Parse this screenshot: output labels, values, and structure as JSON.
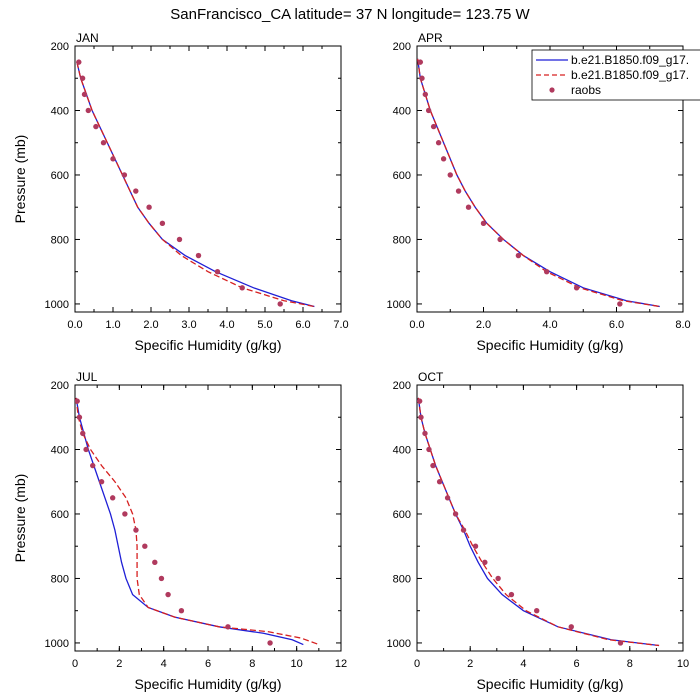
{
  "title": "SanFrancisco_CA  latitude= 37 N longitude= 123.75 W",
  "legend": {
    "placement": "top-right",
    "entries": [
      {
        "label": "b.e21.B1850.f09_g17.",
        "style": "solid",
        "color": "#1f1fd6"
      },
      {
        "label": "b.e21.B1850.f09_g17.",
        "style": "dashed",
        "color": "#d62020"
      },
      {
        "label": "raobs",
        "style": "marker",
        "color": "#b03a5e"
      }
    ]
  },
  "colors": {
    "model1": "#1f1fd6",
    "model2": "#d62020",
    "raobs": "#b03a5e"
  },
  "chart_data": [
    {
      "type": "line",
      "title": "JAN",
      "xlabel": "Specific Humidity (g/kg)",
      "ylabel": "Pressure (mb)",
      "xlim": [
        0,
        7
      ],
      "ylim": [
        200,
        1025
      ],
      "y_inverted": true,
      "xticks": [
        0,
        1,
        2,
        3,
        4,
        5,
        6,
        7
      ],
      "xtick_labels": [
        "0.0",
        "1.0",
        "2.0",
        "3.0",
        "4.0",
        "5.0",
        "6.0",
        "7.0"
      ],
      "yticks": [
        200,
        400,
        600,
        800,
        1000
      ],
      "ytick_labels": [
        "200",
        "400",
        "600",
        "800",
        "1000"
      ],
      "series": [
        {
          "name": "b.e21.B1850.f09_g17.",
          "style": "solid",
          "points": [
            [
              0.05,
              250
            ],
            [
              0.15,
              300
            ],
            [
              0.3,
              350
            ],
            [
              0.45,
              400
            ],
            [
              0.65,
              450
            ],
            [
              0.85,
              500
            ],
            [
              1.05,
              550
            ],
            [
              1.25,
              600
            ],
            [
              1.45,
              650
            ],
            [
              1.65,
              700
            ],
            [
              1.95,
              750
            ],
            [
              2.3,
              800
            ],
            [
              2.9,
              850
            ],
            [
              3.7,
              900
            ],
            [
              4.7,
              950
            ],
            [
              5.7,
              990
            ],
            [
              6.3,
              1008
            ]
          ]
        },
        {
          "name": "b.e21.B1850.f09_g17.",
          "style": "dashed",
          "points": [
            [
              0.05,
              250
            ],
            [
              0.15,
              300
            ],
            [
              0.3,
              350
            ],
            [
              0.45,
              400
            ],
            [
              0.65,
              450
            ],
            [
              0.85,
              500
            ],
            [
              1.05,
              550
            ],
            [
              1.25,
              600
            ],
            [
              1.45,
              650
            ],
            [
              1.65,
              700
            ],
            [
              1.95,
              750
            ],
            [
              2.3,
              800
            ],
            [
              2.8,
              850
            ],
            [
              3.5,
              900
            ],
            [
              4.4,
              950
            ],
            [
              5.5,
              990
            ],
            [
              6.3,
              1008
            ]
          ]
        },
        {
          "name": "raobs",
          "style": "markers",
          "points": [
            [
              0.1,
              250
            ],
            [
              0.2,
              300
            ],
            [
              0.25,
              350
            ],
            [
              0.35,
              400
            ],
            [
              0.55,
              450
            ],
            [
              0.75,
              500
            ],
            [
              1.0,
              550
            ],
            [
              1.3,
              600
            ],
            [
              1.6,
              650
            ],
            [
              1.95,
              700
            ],
            [
              2.3,
              750
            ],
            [
              2.75,
              800
            ],
            [
              3.25,
              850
            ],
            [
              3.75,
              900
            ],
            [
              4.4,
              950
            ],
            [
              5.4,
              1000
            ]
          ]
        }
      ]
    },
    {
      "type": "line",
      "title": "APR",
      "xlabel": "Specific Humidity (g/kg)",
      "ylabel": "",
      "xlim": [
        0,
        8
      ],
      "ylim": [
        200,
        1025
      ],
      "y_inverted": true,
      "xticks": [
        0,
        2,
        4,
        6,
        8
      ],
      "xtick_labels": [
        "0.0",
        "2.0",
        "4.0",
        "6.0",
        "8.0"
      ],
      "yticks": [
        200,
        400,
        600,
        800,
        1000
      ],
      "ytick_labels": [
        "200",
        "400",
        "600",
        "800",
        "1000"
      ],
      "series": [
        {
          "name": "b.e21.B1850.f09_g17.",
          "style": "solid",
          "points": [
            [
              0.02,
              240
            ],
            [
              0.1,
              300
            ],
            [
              0.25,
              350
            ],
            [
              0.4,
              400
            ],
            [
              0.6,
              450
            ],
            [
              0.8,
              500
            ],
            [
              1.0,
              550
            ],
            [
              1.2,
              600
            ],
            [
              1.45,
              650
            ],
            [
              1.75,
              700
            ],
            [
              2.1,
              750
            ],
            [
              2.6,
              800
            ],
            [
              3.2,
              850
            ],
            [
              4.0,
              900
            ],
            [
              5.0,
              950
            ],
            [
              6.3,
              990
            ],
            [
              7.3,
              1008
            ]
          ]
        },
        {
          "name": "b.e21.B1850.f09_g17.",
          "style": "dashed",
          "points": [
            [
              0.02,
              240
            ],
            [
              0.1,
              300
            ],
            [
              0.25,
              350
            ],
            [
              0.4,
              400
            ],
            [
              0.6,
              450
            ],
            [
              0.8,
              500
            ],
            [
              1.0,
              550
            ],
            [
              1.2,
              600
            ],
            [
              1.45,
              650
            ],
            [
              1.75,
              700
            ],
            [
              2.1,
              750
            ],
            [
              2.6,
              800
            ],
            [
              3.2,
              850
            ],
            [
              3.9,
              900
            ],
            [
              4.9,
              950
            ],
            [
              6.2,
              990
            ],
            [
              7.3,
              1008
            ]
          ]
        },
        {
          "name": "raobs",
          "style": "markers",
          "points": [
            [
              0.1,
              250
            ],
            [
              0.15,
              300
            ],
            [
              0.25,
              350
            ],
            [
              0.35,
              400
            ],
            [
              0.5,
              450
            ],
            [
              0.65,
              500
            ],
            [
              0.8,
              550
            ],
            [
              1.0,
              600
            ],
            [
              1.25,
              650
            ],
            [
              1.55,
              700
            ],
            [
              2.0,
              750
            ],
            [
              2.5,
              800
            ],
            [
              3.05,
              850
            ],
            [
              3.9,
              900
            ],
            [
              4.8,
              950
            ],
            [
              6.1,
              1000
            ]
          ]
        }
      ]
    },
    {
      "type": "line",
      "title": "JUL",
      "xlabel": "Specific Humidity (g/kg)",
      "ylabel": "Pressure (mb)",
      "xlim": [
        0,
        12
      ],
      "ylim": [
        200,
        1025
      ],
      "y_inverted": true,
      "xticks": [
        0,
        2,
        4,
        6,
        8,
        10,
        12
      ],
      "xtick_labels": [
        "0",
        "2",
        "4",
        "6",
        "8",
        "10",
        "12"
      ],
      "yticks": [
        200,
        400,
        600,
        800,
        1000
      ],
      "ytick_labels": [
        "200",
        "400",
        "600",
        "800",
        "1000"
      ],
      "series": [
        {
          "name": "b.e21.B1850.f09_g17.",
          "style": "solid",
          "points": [
            [
              0.05,
              240
            ],
            [
              0.2,
              300
            ],
            [
              0.4,
              350
            ],
            [
              0.6,
              400
            ],
            [
              0.85,
              450
            ],
            [
              1.1,
              500
            ],
            [
              1.35,
              550
            ],
            [
              1.6,
              600
            ],
            [
              1.8,
              650
            ],
            [
              1.95,
              700
            ],
            [
              2.1,
              750
            ],
            [
              2.3,
              800
            ],
            [
              2.6,
              850
            ],
            [
              3.3,
              890
            ],
            [
              4.5,
              920
            ],
            [
              6.5,
              950
            ],
            [
              8.5,
              970
            ],
            [
              9.8,
              990
            ],
            [
              10.3,
              1005
            ]
          ]
        },
        {
          "name": "b.e21.B1850.f09_g17.",
          "style": "dashed",
          "points": [
            [
              0.05,
              240
            ],
            [
              0.15,
              300
            ],
            [
              0.35,
              350
            ],
            [
              0.7,
              400
            ],
            [
              1.2,
              450
            ],
            [
              1.8,
              500
            ],
            [
              2.3,
              550
            ],
            [
              2.6,
              600
            ],
            [
              2.75,
              650
            ],
            [
              2.8,
              700
            ],
            [
              2.8,
              750
            ],
            [
              2.8,
              800
            ],
            [
              2.9,
              850
            ],
            [
              3.3,
              890
            ],
            [
              4.5,
              920
            ],
            [
              6.5,
              950
            ],
            [
              8.7,
              965
            ],
            [
              10.2,
              985
            ],
            [
              11.0,
              1005
            ]
          ]
        },
        {
          "name": "raobs",
          "style": "markers",
          "points": [
            [
              0.1,
              250
            ],
            [
              0.2,
              300
            ],
            [
              0.35,
              350
            ],
            [
              0.5,
              400
            ],
            [
              0.8,
              450
            ],
            [
              1.2,
              500
            ],
            [
              1.7,
              550
            ],
            [
              2.25,
              600
            ],
            [
              2.75,
              650
            ],
            [
              3.15,
              700
            ],
            [
              3.6,
              750
            ],
            [
              3.9,
              800
            ],
            [
              4.2,
              850
            ],
            [
              4.8,
              900
            ],
            [
              6.9,
              950
            ],
            [
              8.8,
              1000
            ]
          ]
        }
      ]
    },
    {
      "type": "line",
      "title": "OCT",
      "xlabel": "Specific Humidity (g/kg)",
      "ylabel": "",
      "xlim": [
        0,
        10
      ],
      "ylim": [
        200,
        1025
      ],
      "y_inverted": true,
      "xticks": [
        0,
        2,
        4,
        6,
        8,
        10
      ],
      "xtick_labels": [
        "0",
        "2",
        "4",
        "6",
        "8",
        "10"
      ],
      "yticks": [
        200,
        400,
        600,
        800,
        1000
      ],
      "ytick_labels": [
        "200",
        "400",
        "600",
        "800",
        "1000"
      ],
      "series": [
        {
          "name": "b.e21.B1850.f09_g17.",
          "style": "solid",
          "points": [
            [
              0.05,
              240
            ],
            [
              0.15,
              300
            ],
            [
              0.3,
              350
            ],
            [
              0.5,
              400
            ],
            [
              0.7,
              450
            ],
            [
              0.95,
              500
            ],
            [
              1.2,
              550
            ],
            [
              1.45,
              600
            ],
            [
              1.75,
              650
            ],
            [
              2.0,
              700
            ],
            [
              2.3,
              750
            ],
            [
              2.65,
              800
            ],
            [
              3.2,
              850
            ],
            [
              4.0,
              900
            ],
            [
              5.3,
              950
            ],
            [
              7.3,
              990
            ],
            [
              9.1,
              1008
            ]
          ]
        },
        {
          "name": "b.e21.B1850.f09_g17.",
          "style": "dashed",
          "points": [
            [
              0.05,
              240
            ],
            [
              0.15,
              300
            ],
            [
              0.3,
              350
            ],
            [
              0.5,
              400
            ],
            [
              0.7,
              450
            ],
            [
              0.95,
              500
            ],
            [
              1.2,
              550
            ],
            [
              1.45,
              600
            ],
            [
              1.8,
              650
            ],
            [
              2.1,
              700
            ],
            [
              2.45,
              750
            ],
            [
              2.85,
              800
            ],
            [
              3.35,
              850
            ],
            [
              4.1,
              900
            ],
            [
              5.3,
              950
            ],
            [
              7.2,
              990
            ],
            [
              9.1,
              1008
            ]
          ]
        },
        {
          "name": "raobs",
          "style": "markers",
          "points": [
            [
              0.1,
              250
            ],
            [
              0.15,
              300
            ],
            [
              0.3,
              350
            ],
            [
              0.45,
              400
            ],
            [
              0.6,
              450
            ],
            [
              0.85,
              500
            ],
            [
              1.15,
              550
            ],
            [
              1.45,
              600
            ],
            [
              1.75,
              650
            ],
            [
              2.2,
              700
            ],
            [
              2.55,
              750
            ],
            [
              3.05,
              800
            ],
            [
              3.55,
              850
            ],
            [
              4.5,
              900
            ],
            [
              5.8,
              950
            ],
            [
              7.65,
              1000
            ]
          ]
        }
      ]
    }
  ]
}
